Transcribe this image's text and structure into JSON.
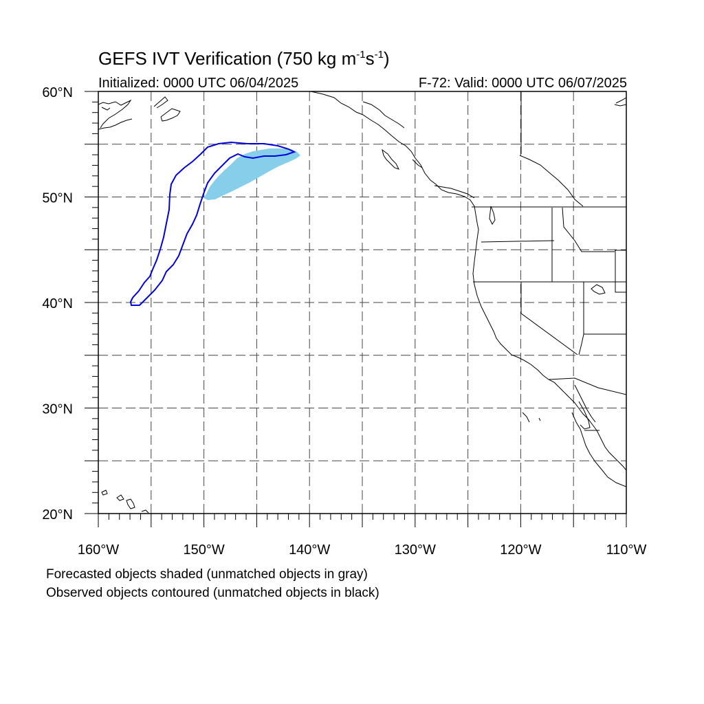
{
  "title": {
    "main": "GEFS IVT Verification (750 kg m",
    "sup1": "-1",
    "mid": "s",
    "sup2": "-1",
    "end": ")"
  },
  "initialized": "Initialized: 0000 UTC 06/04/2025",
  "valid": "F-72: Valid: 0000 UTC 06/07/2025",
  "map": {
    "projection": "cylindrical-equidistant",
    "lon_range": [
      -160,
      -110
    ],
    "lat_range": [
      20,
      60
    ],
    "lat_labels": [
      {
        "lat": 60,
        "text": "60°N"
      },
      {
        "lat": 50,
        "text": "50°N"
      },
      {
        "lat": 40,
        "text": "40°N"
      },
      {
        "lat": 30,
        "text": "30°N"
      },
      {
        "lat": 20,
        "text": "20°N"
      }
    ],
    "lon_labels": [
      {
        "lon": -160,
        "text": "160°W"
      },
      {
        "lon": -150,
        "text": "150°W"
      },
      {
        "lon": -140,
        "text": "140°W"
      },
      {
        "lon": -130,
        "text": "130°W"
      },
      {
        "lon": -120,
        "text": "120°W"
      },
      {
        "lon": -110,
        "text": "110°W"
      }
    ],
    "grid_lons": [
      -155,
      -150,
      -145,
      -140,
      -135,
      -130,
      -125,
      -120,
      -115
    ],
    "grid_lats": [
      25,
      30,
      35,
      40,
      45,
      50,
      55
    ],
    "forecast_color": "#87ceea",
    "observed_color": "#0000dd"
  },
  "notes": [
    "Forecasted objects shaded (unmatched objects in gray)",
    "Observed objects contoured (unmatched objects in black)"
  ]
}
